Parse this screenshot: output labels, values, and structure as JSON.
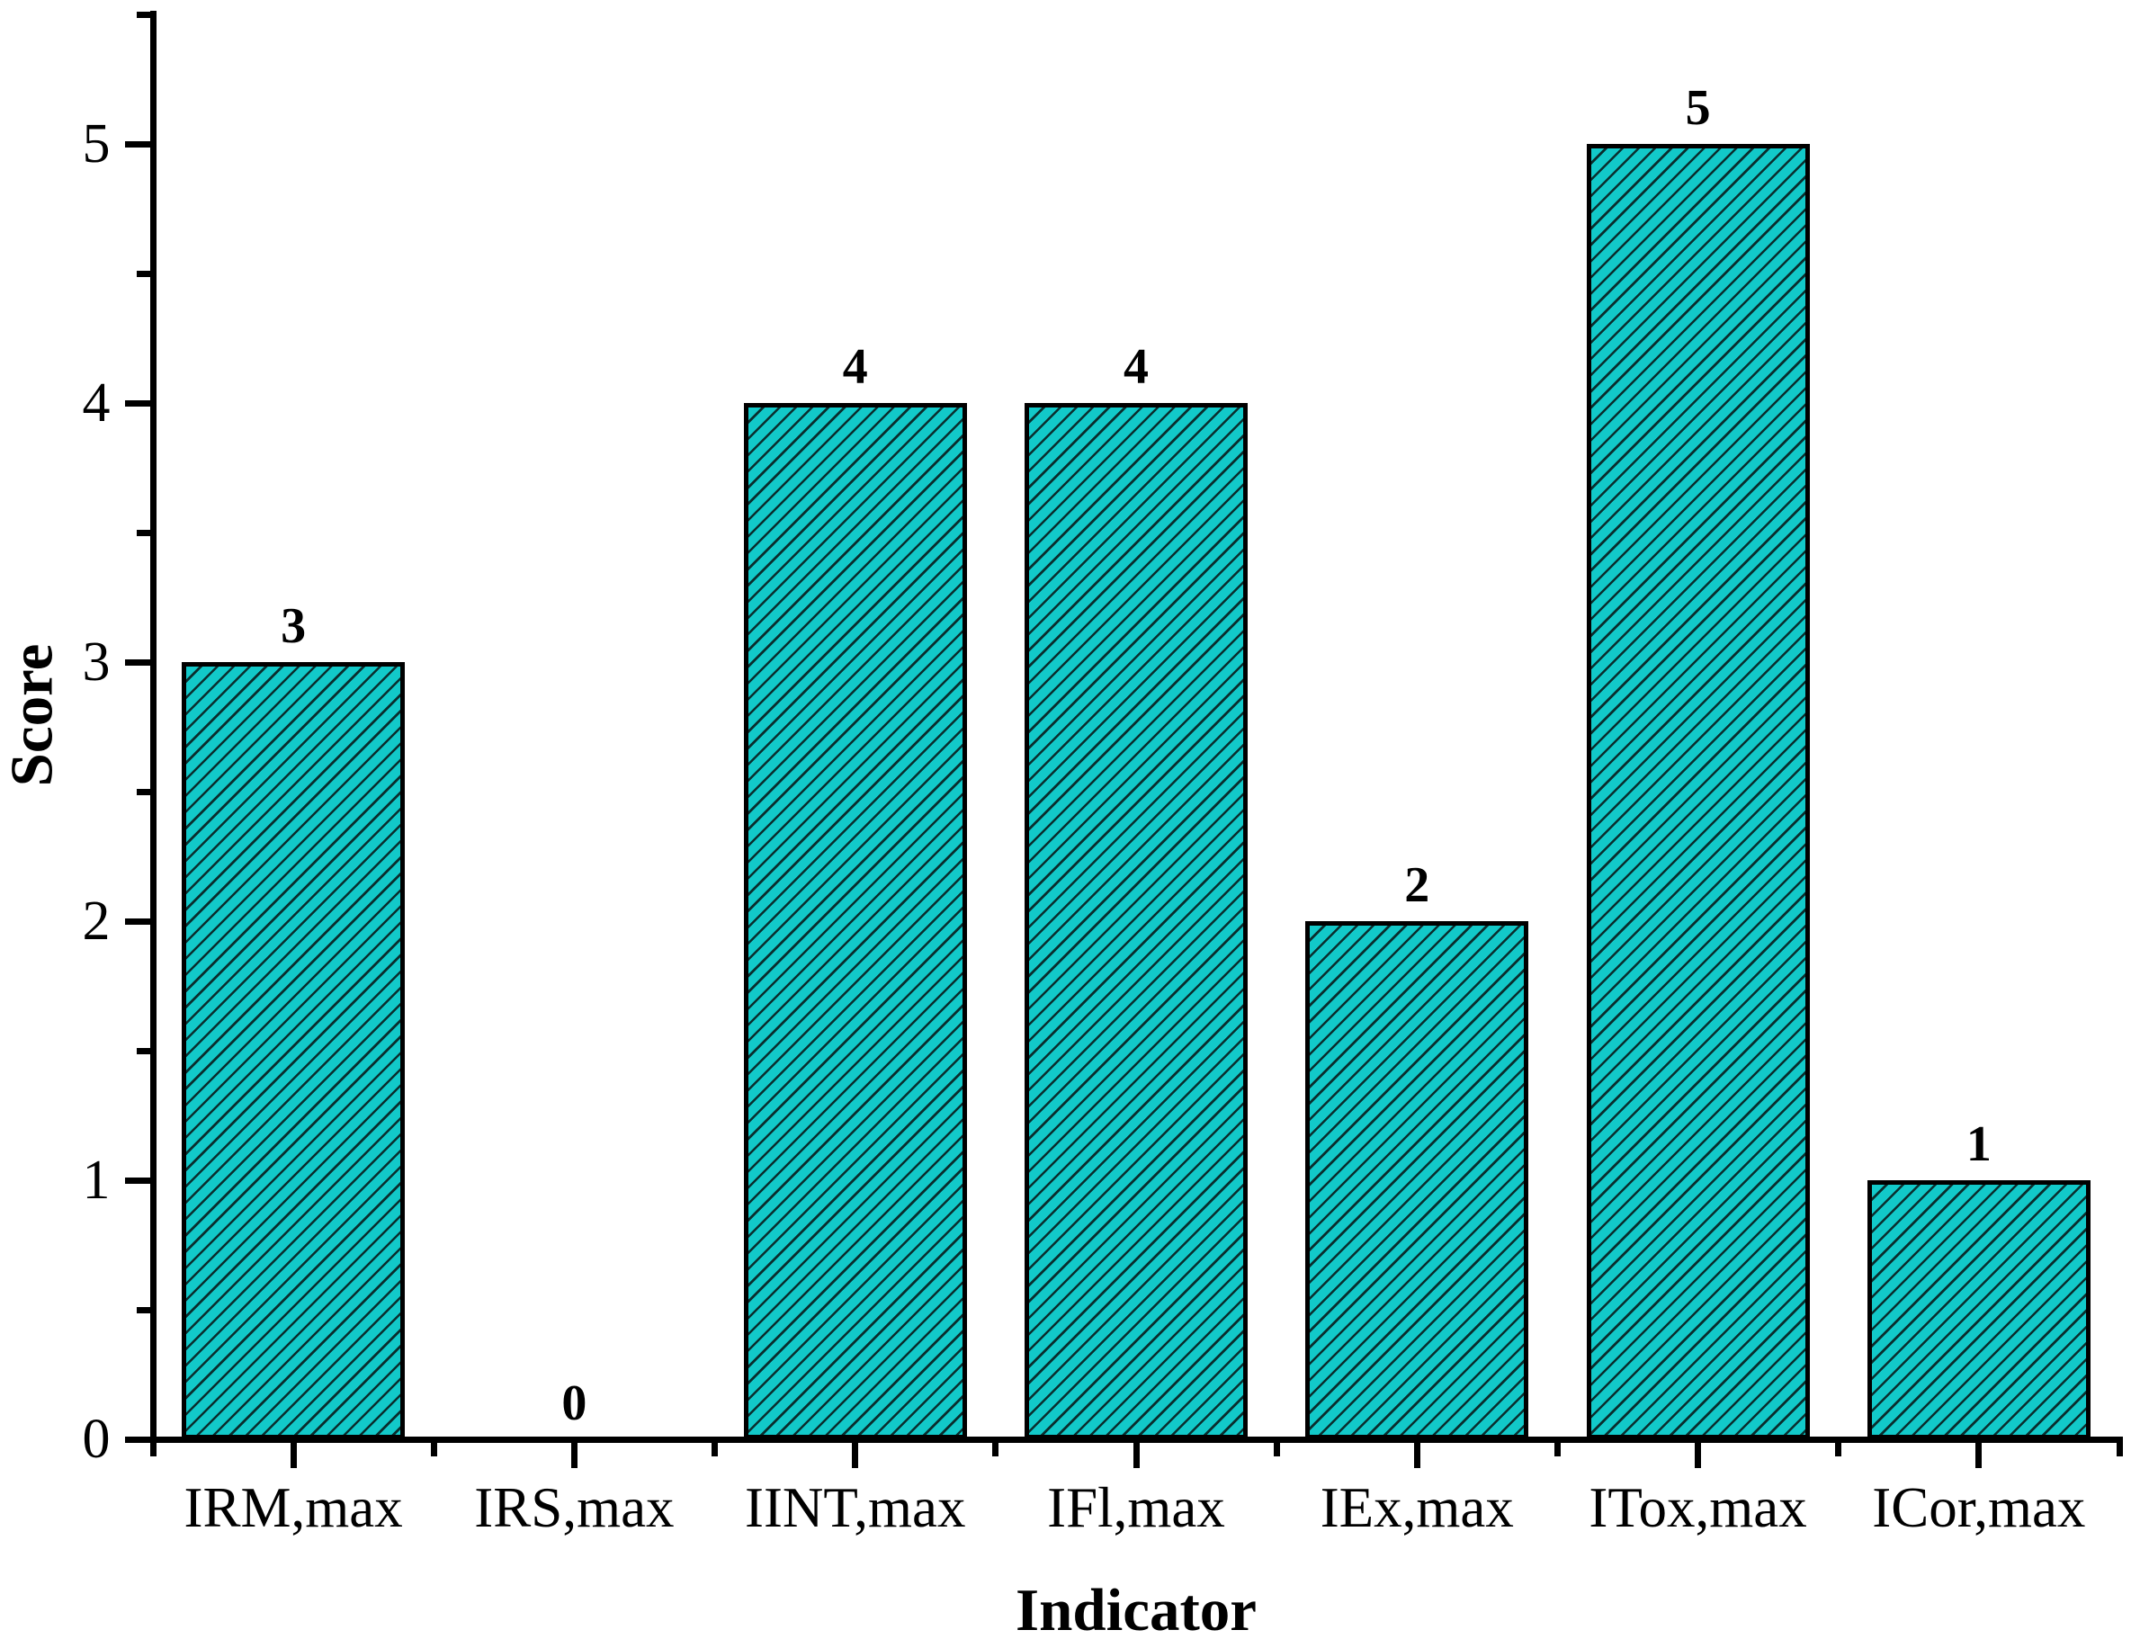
{
  "chart_data": {
    "type": "bar",
    "title": "",
    "xlabel": "Indicator",
    "ylabel": "Score",
    "categories": [
      "IRM,max",
      "IRS,max",
      "IINT,max",
      "IFl,max",
      "IEx,max",
      "ITox,max",
      "ICor,max"
    ],
    "values": [
      3,
      0,
      4,
      4,
      2,
      5,
      1
    ],
    "bar_labels": [
      "3",
      "0",
      "4",
      "4",
      "2",
      "5",
      "1"
    ],
    "ylim": [
      0,
      5.5
    ],
    "y_axis": {
      "major_ticks": [
        0,
        1,
        2,
        3,
        4,
        5
      ],
      "major_tick_labels": [
        "0",
        "1",
        "2",
        "3",
        "4",
        "5"
      ],
      "minor_ticks": [
        0.5,
        1.5,
        2.5,
        3.5,
        4.5,
        5.5
      ]
    },
    "x_axis": {
      "major_ticks": "at category centers",
      "minor_ticks": "at category boundaries"
    },
    "grid": false,
    "legend": null,
    "style": {
      "bar_fill": "#12c9c9",
      "hatch": "diagonal-forward-slash",
      "hatch_color": "#0a2e2e",
      "bar_outline": "#000000",
      "axis_color": "#000000",
      "text_color": "#000000"
    }
  }
}
